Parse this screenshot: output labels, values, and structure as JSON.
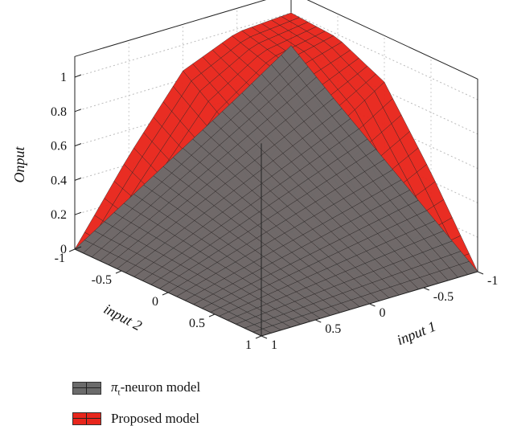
{
  "chart_data": {
    "type": "surface3d",
    "title": "",
    "xlabel": "input 1",
    "ylabel": "input 2",
    "zlabel": "Onput",
    "xlim": [
      -1,
      1
    ],
    "ylim": [
      -1,
      1
    ],
    "zlim": [
      0,
      1
    ],
    "x_ticks": [
      "1",
      "0.5",
      "0",
      "-0.5",
      "-1"
    ],
    "y_ticks": [
      "-1",
      "-0.5",
      "0",
      "0.5",
      "1"
    ],
    "z_ticks": [
      "0",
      "0.2",
      "0.4",
      "0.6",
      "0.8",
      "1"
    ],
    "grid": true,
    "series": [
      {
        "name": "π_t-neuron model",
        "color": "#6b6b6b",
        "x": [
          -1,
          -0.5,
          0,
          0.5,
          1
        ],
        "y": [
          -1,
          -0.5,
          0,
          0.5,
          1
        ],
        "z": [
          [
            0.81,
            0.6,
            0.4,
            0.2,
            0.0
          ],
          [
            0.6,
            0.45,
            0.3,
            0.15,
            0.0
          ],
          [
            0.4,
            0.3,
            0.2,
            0.1,
            0.0
          ],
          [
            0.2,
            0.15,
            0.1,
            0.05,
            0.0
          ],
          [
            0.0,
            0.0,
            0.0,
            0.0,
            0.0
          ]
        ]
      },
      {
        "name": "Proposed model",
        "color": "#e8261c",
        "x": [
          -1,
          -0.5,
          0,
          0.5,
          1
        ],
        "y": [
          -1,
          -0.5,
          0,
          0.5,
          1
        ],
        "z": [
          [
            1.0,
            0.98,
            0.85,
            0.45,
            0.0
          ],
          [
            0.98,
            0.9,
            0.65,
            0.3,
            0.0
          ],
          [
            0.85,
            0.65,
            0.4,
            0.18,
            0.0
          ],
          [
            0.45,
            0.3,
            0.18,
            0.08,
            0.0
          ],
          [
            0.0,
            0.0,
            0.0,
            0.0,
            0.0
          ]
        ]
      }
    ],
    "legend": {
      "position": "bottom-left",
      "items": [
        {
          "label": "π",
          "sub": "t",
          "suffix": "-neuron model",
          "color": "#6b6b6b"
        },
        {
          "label": "Proposed model",
          "color": "#e8261c"
        }
      ]
    }
  }
}
